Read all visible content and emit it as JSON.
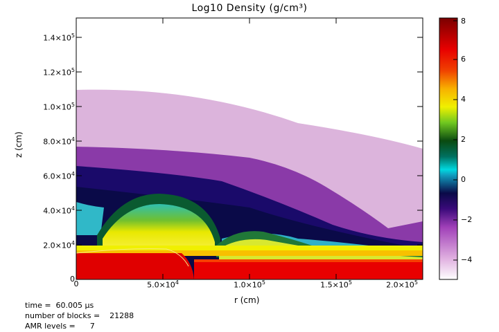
{
  "title": "Log10 Density (g/cm³)",
  "axes": {
    "xlabel": "r (cm)",
    "ylabel": "z (cm)",
    "xticks": [
      {
        "mant": "0",
        "exp": ""
      },
      {
        "mant": "5.0×10",
        "exp": "4"
      },
      {
        "mant": "1.0×10",
        "exp": "5"
      },
      {
        "mant": "1.5×10",
        "exp": "5"
      },
      {
        "mant": "2.0×10",
        "exp": "5"
      }
    ],
    "yticks": [
      {
        "mant": "0",
        "exp": ""
      },
      {
        "mant": "2.0×10",
        "exp": "4"
      },
      {
        "mant": "4.0×10",
        "exp": "4"
      },
      {
        "mant": "6.0×10",
        "exp": "4"
      },
      {
        "mant": "8.0×10",
        "exp": "4"
      },
      {
        "mant": "1.0×10",
        "exp": "5"
      },
      {
        "mant": "1.2×10",
        "exp": "5"
      },
      {
        "mant": "1.4×10",
        "exp": "5"
      }
    ]
  },
  "colorbar": {
    "ticks": [
      "−4",
      "−2",
      "0",
      "2",
      "4",
      "6",
      "8"
    ],
    "colors": [
      "#f7e8f7",
      "#cc88cc",
      "#8a1a9e",
      "#1a0a6a",
      "#0a0a40",
      "#00c8d8",
      "#0a5a10",
      "#7ad010",
      "#f0f000",
      "#f0a000",
      "#f03000",
      "#e00000",
      "#8a0000"
    ]
  },
  "info": {
    "time_label": "time =  60.005 μs",
    "blocks_label": "number of blocks =    21288",
    "amr_label": "AMR levels =      7"
  }
}
